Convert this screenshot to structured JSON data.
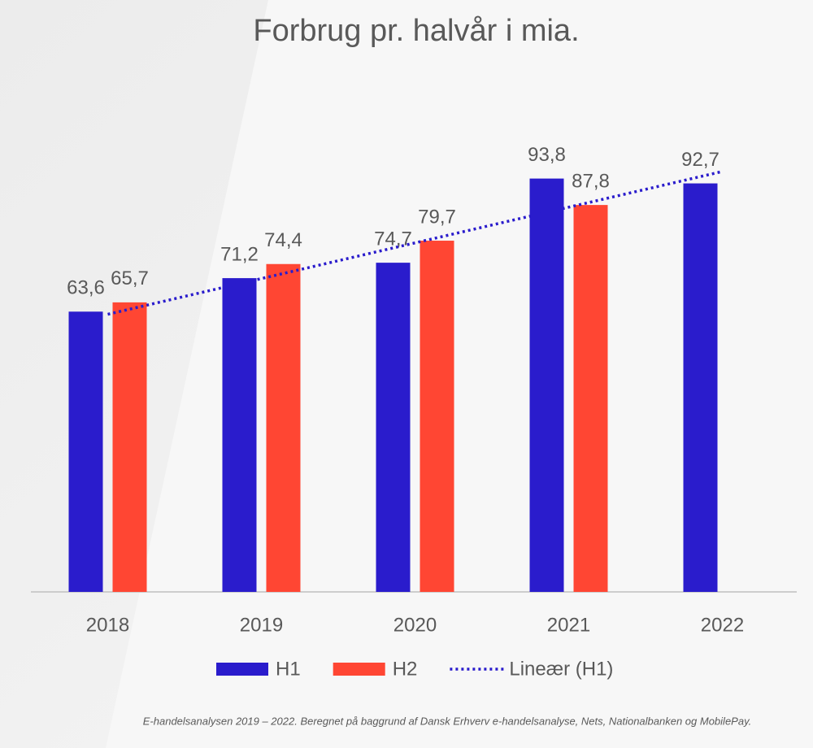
{
  "chart_data": {
    "type": "bar",
    "title": "Forbrug pr. halvår i mia.",
    "categories": [
      "2018",
      "2019",
      "2020",
      "2021",
      "2022"
    ],
    "series": [
      {
        "name": "H1",
        "color": "#2a1ccc",
        "values": [
          63.6,
          71.2,
          74.7,
          93.8,
          92.7
        ],
        "value_labels": [
          "63,6",
          "71,2",
          "74,7",
          "93,8",
          "92,7"
        ]
      },
      {
        "name": "H2",
        "color": "#ff4633",
        "values": [
          65.7,
          74.4,
          79.7,
          87.8,
          null
        ],
        "value_labels": [
          "65,7",
          "74,4",
          "79,7",
          "87,8",
          null
        ]
      },
      {
        "name": "Lineær (H1)",
        "type": "line",
        "style": "dotted",
        "color": "#2a1ccc",
        "values": [
          63.0,
          71.1,
          79.2,
          87.3,
          95.4
        ]
      }
    ],
    "ylim": [
      0,
      100
    ],
    "grid": false,
    "legend": "bottom",
    "source": "E-handelsanalysen 2019 – 2022. Beregnet på baggrund af Dansk Erhverv e-handelsanalyse, Nets, Nationalbanken og MobilePay."
  }
}
